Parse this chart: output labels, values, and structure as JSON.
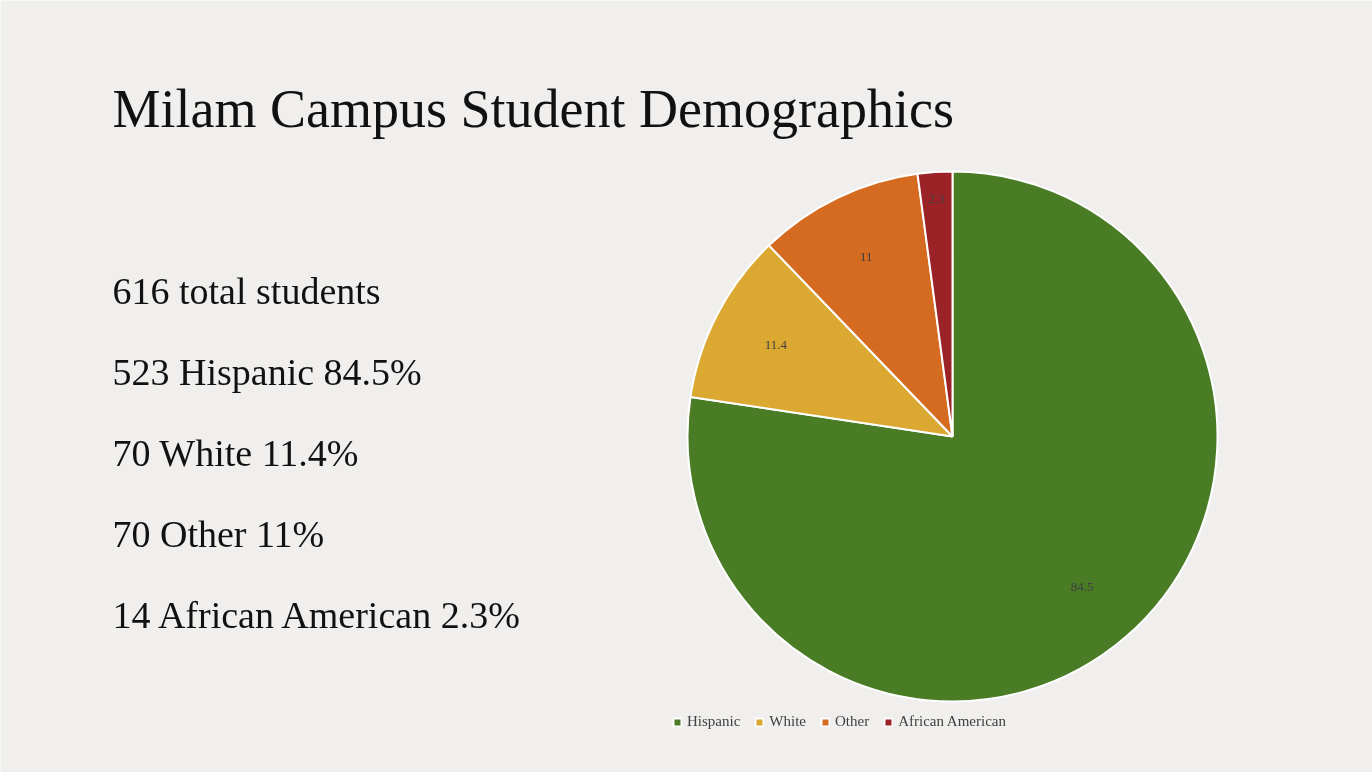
{
  "chart_data": {
    "type": "pie",
    "title": "Milam Campus Student Demographics",
    "categories": [
      "Hispanic",
      "White",
      "Other",
      "African American"
    ],
    "values": [
      84.5,
      11.4,
      11,
      2.3
    ],
    "colors": [
      "#4a7c26",
      "#dba932",
      "#d46b20",
      "#9b2226"
    ],
    "data_labels": true,
    "legend": "bottom",
    "annotations": [
      "616 total students",
      "523 Hispanic 84.5%",
      "70 White 11.4%",
      "70 Other 11%",
      "14 African American 2.3%"
    ]
  }
}
